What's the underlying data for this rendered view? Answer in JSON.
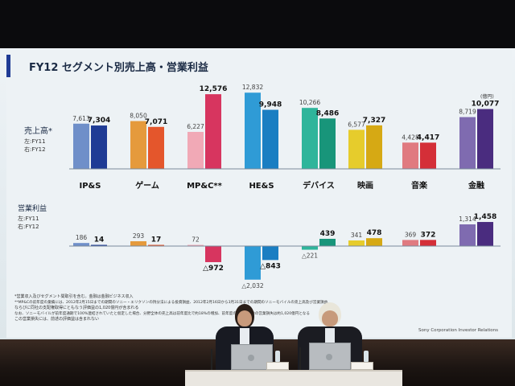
{
  "slide": {
    "title": "FY12  セグメント別売上高・営業利益",
    "unit": "(億円)",
    "footer": "Sony Corporation  Investor Relations",
    "notes": [
      "*営業収入及びセグメント間取引を含む。金融は金融ビジネス収入",
      "**MP&Cの前年度の業績には、2012年2月15日までの期間のソニー・エリクソンの持分法による投資損益、2012年2月16日から3月31日までの期間のソニーモバイルの売上高及び営業損益、",
      "ならびに同社の支配権取得にともなう評価益の1,020億円が含まれる",
      "なお、ソニーモバイルが前年度通期で100%連結されていたと仮定した場合、分野全体の売上高は前年度比で約18%の増加、前年度の同分野全体の営業損失は約1,020億円となる",
      "この営業損失には、前述の評価益は含まれない"
    ]
  },
  "chart_data": {
    "type": "bar",
    "categories": [
      "IP&S",
      "ゲーム",
      "MP&C**",
      "HE&S",
      "デバイス",
      "映画",
      "音楽",
      "金融"
    ],
    "colors": [
      "#6f8fc9",
      "#e59a3c",
      "#f1a9b6",
      "#2f9bd6",
      "#2fb59b",
      "#e6cc2c",
      "#e07a80",
      "#7f6bb0"
    ],
    "colors_fy12": [
      "#1f3b95",
      "#e4562c",
      "#d7355f",
      "#1a7ec2",
      "#18957a",
      "#d6a914",
      "#d42f38",
      "#4a2c7f"
    ],
    "sales": {
      "label": "売上高*",
      "legend": [
        "左:FY11",
        "右:FY12"
      ],
      "series": [
        {
          "values": [
            7613,
            8050,
            6227,
            12832,
            10266,
            6577,
            4428,
            8719
          ]
        },
        {
          "values": [
            7304,
            7071,
            12576,
            9948,
            8486,
            7327,
            4417,
            10077
          ]
        }
      ],
      "labels_fy11": [
        "7,613",
        "8,050",
        "6,227",
        "12,832",
        "10,266",
        "6,577",
        "4,428",
        "8,719"
      ],
      "labels_fy12": [
        "7,304",
        "7,071",
        "12,576",
        "9,948",
        "8,486",
        "7,327",
        "4,417",
        "10,077"
      ]
    },
    "operating_income": {
      "label": "営業利益",
      "legend": [
        "左:FY11",
        "右:FY12"
      ],
      "series": [
        {
          "values": [
            186,
            293,
            72,
            -2032,
            -221,
            341,
            369,
            1314
          ]
        },
        {
          "values": [
            14,
            17,
            -972,
            -843,
            439,
            478,
            372,
            1458
          ]
        }
      ],
      "labels_fy11": [
        "186",
        "293",
        "72",
        "△2,032",
        "△221",
        "341",
        "369",
        "1,314"
      ],
      "labels_fy12": [
        "14",
        "17",
        "△972",
        "△843",
        "439",
        "478",
        "372",
        "1,458"
      ]
    }
  }
}
